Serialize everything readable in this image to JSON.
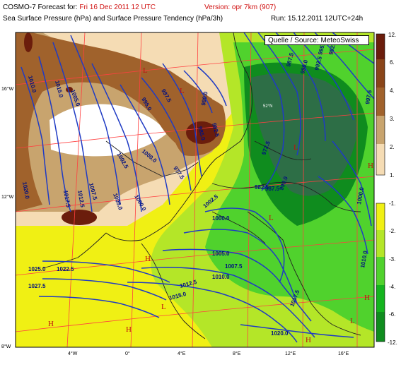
{
  "header": {
    "line1_prefix": "COSMO-7 Forecast for:",
    "line1_date": "Fri 16 Dec 2011 12 UTC",
    "line1_version": "Version: opr 7km (907)",
    "line2_fields": "Sea Surface Pressure (hPa)  and  Surface Pressure Tendency (hPa/3h)",
    "line2_run": "Run: 15.12.2011 12UTC+24h"
  },
  "source_box": "Quelle / Source: MeteoSwiss",
  "colors": {
    "rise_strong": "#6b1d0c",
    "rise_mid": "#a0622c",
    "rise_weak": "#c8a46e",
    "rise_faint": "#f5dcb4",
    "fall_faint": "#f0f014",
    "fall_weak": "#b4e628",
    "fall_mid": "#50d22d",
    "fall_strong": "#0f8c1e",
    "fall_deep": "#2d6e46",
    "isobar": "#1f3bc4",
    "graticule": "#ff4040",
    "border": "#202020"
  },
  "colorbar_upper": {
    "labels": [
      "12.",
      "6.",
      "4.",
      "3.",
      "2.",
      "1."
    ]
  },
  "colorbar_lower": {
    "labels": [
      "-1.",
      "-2.",
      "-3.",
      "-4.",
      "-6.",
      "-12."
    ]
  },
  "lat_labels": [
    "16°W",
    "12°W",
    "8°W"
  ],
  "lon_labels": [
    "4°W",
    "0°",
    "4°E",
    "8°E",
    "12°E",
    "16°E"
  ],
  "isobar_labels": [
    "1010.0",
    "1015.0",
    "1020.0",
    "1005.0",
    "1002.5",
    "1000.0",
    "995.0",
    "990.0",
    "987.5",
    "985.0",
    "982.5",
    "992.5",
    "997.5",
    "1007.5",
    "1012.5",
    "1017.5",
    "1022.5",
    "1025.0",
    "1027.5",
    "972.5",
    "977.5",
    "980.0",
    "1005.0",
    "1007.5",
    "1010.0",
    "1012.5",
    "1015.0",
    "1017.5",
    "1020.0",
    "1000.0",
    "1002.5",
    "995.0",
    "992.5",
    "990.0",
    "987.5",
    "997.5",
    "982.5",
    "1000.0",
    "1010.0",
    "1005.0",
    "1000.0"
  ],
  "pressure_marks": [
    "L",
    "L",
    "L",
    "H",
    "H",
    "H",
    "L",
    "H",
    "L",
    "H",
    "H",
    "L"
  ],
  "place_label": "52°N"
}
